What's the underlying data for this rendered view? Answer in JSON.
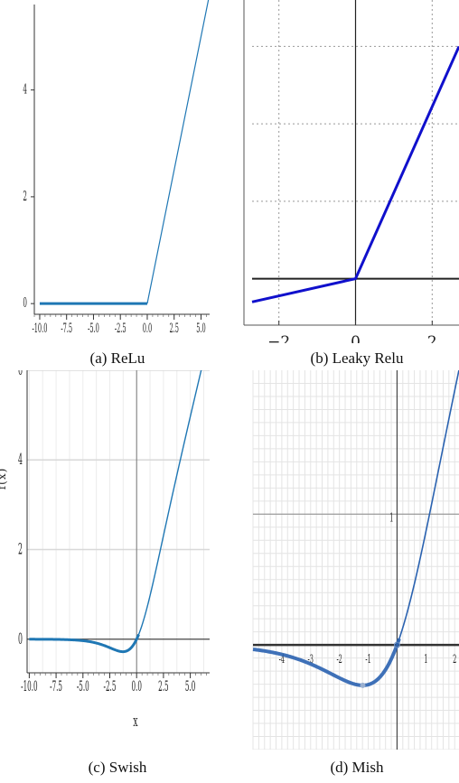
{
  "captions": {
    "a": "(a) ReLu",
    "b": "(b) Leaky Relu",
    "c": "(c) Swish",
    "d": "(d) Mish"
  },
  "chart_data": [
    {
      "id": "relu",
      "type": "line",
      "title": "",
      "xlabel": "",
      "ylabel": "",
      "xlim": [
        -10.5,
        5.8
      ],
      "ylim": [
        -0.2,
        5.6
      ],
      "x_ticks": [
        -10.0,
        -7.5,
        -5.0,
        -2.5,
        0.0,
        2.5,
        5.0
      ],
      "x_tick_labels": [
        "-10.0",
        "-7.5",
        "-5.0",
        "-2.5",
        "0.0",
        "2.5",
        "5.0"
      ],
      "y_ticks": [
        0,
        2,
        4
      ],
      "y_tick_labels": [
        "0",
        "2",
        "4"
      ],
      "grid": false,
      "color": "#1f77b4",
      "series": [
        {
          "x": [
            -10,
            -7.5,
            -5,
            -2.5,
            0,
            2.5,
            5,
            5.8
          ],
          "y": [
            0,
            0,
            0,
            0,
            0,
            2.5,
            5,
            5.8
          ]
        }
      ]
    },
    {
      "id": "leaky_relu",
      "type": "line",
      "title": "",
      "xlabel": "",
      "ylabel": "",
      "xlim": [
        -2.7,
        2.7
      ],
      "ylim": [
        -0.6,
        3.6
      ],
      "x_ticks": [
        -2,
        0,
        2
      ],
      "x_tick_labels": [
        "−2",
        "0",
        "2"
      ],
      "grid": true,
      "color": "#1010cc",
      "series": [
        {
          "x": [
            -2.7,
            0,
            2.7
          ],
          "y": [
            -0.3,
            0,
            3.0
          ]
        }
      ]
    },
    {
      "id": "swish",
      "type": "line",
      "title": "",
      "xlabel": "x",
      "ylabel": "f(x)",
      "xlim": [
        -10.2,
        6.8
      ],
      "ylim": [
        -0.75,
        6.0
      ],
      "x_ticks": [
        -10.0,
        -7.5,
        -5.0,
        -2.5,
        0.0,
        2.5,
        5.0
      ],
      "x_tick_labels": [
        "-10.0",
        "-7.5",
        "-5.0",
        "-2.5",
        "0.0",
        "2.5",
        "5.0"
      ],
      "y_ticks": [
        0,
        2,
        4,
        6
      ],
      "y_tick_labels": [
        "0",
        "2",
        "4",
        "6"
      ],
      "grid": true,
      "color": "#1f77b4",
      "series": [
        {
          "function": "swish",
          "x_range": [
            -10,
            6.8
          ]
        }
      ]
    },
    {
      "id": "mish",
      "type": "line",
      "title": "",
      "xlabel": "",
      "ylabel": "",
      "xlim": [
        -5.0,
        2.15
      ],
      "ylim": [
        -0.8,
        2.1
      ],
      "x_ticks": [
        -4,
        -3,
        -2,
        -1,
        1,
        2
      ],
      "x_tick_labels": [
        "-4",
        "-3",
        "-2",
        "-1",
        "1",
        "2"
      ],
      "y_ticks": [
        1
      ],
      "y_tick_labels": [
        "1"
      ],
      "grid": true,
      "color": "#2a62b0",
      "series": [
        {
          "function": "mish",
          "x_range": [
            -5,
            2.15
          ]
        }
      ]
    }
  ]
}
